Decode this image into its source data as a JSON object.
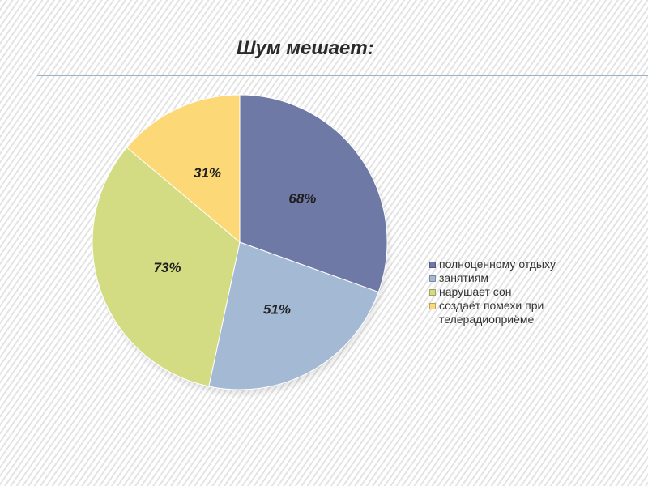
{
  "title": "Шум мешает:",
  "chart_data": {
    "type": "pie",
    "title": "",
    "slices": [
      {
        "label": "полноценному отдыху",
        "value": 68,
        "display": "68%",
        "color": "#6e79a6"
      },
      {
        "label": "занятиям",
        "value": 51,
        "display": "51%",
        "color": "#a4b9d3"
      },
      {
        "label": "нарушает сон",
        "value": 73,
        "display": "73%",
        "color": "#d3dc82"
      },
      {
        "label": "создаёт помехи при телерадиоприёме",
        "value": 31,
        "display": "31%",
        "color": "#fcd876"
      }
    ],
    "legend_position": "right",
    "start_angle": "top, clockwise"
  }
}
